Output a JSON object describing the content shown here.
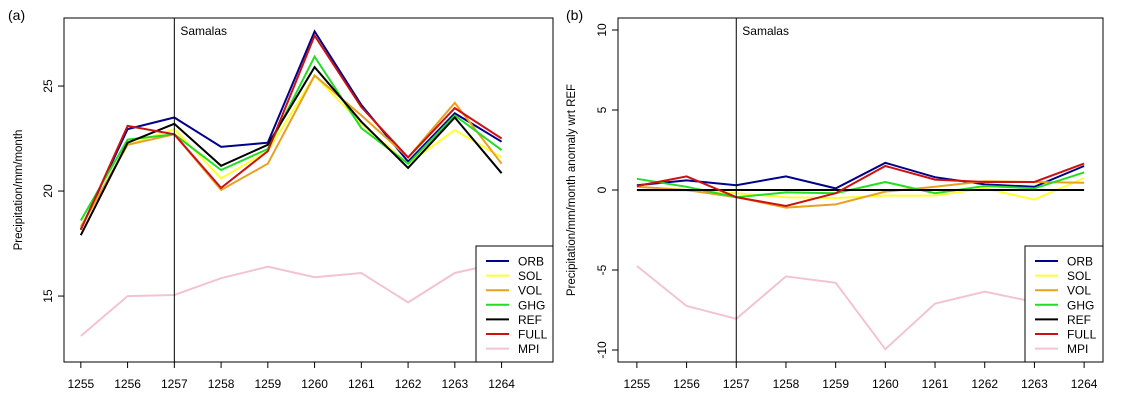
{
  "chart_data": [
    {
      "type": "line",
      "panel_label": "(a)",
      "title": "",
      "xlabel": "",
      "ylabel": "Precipitation/mm/month",
      "x": [
        1255,
        1256,
        1257,
        1258,
        1259,
        1260,
        1261,
        1262,
        1263,
        1264
      ],
      "xticks": [
        "1255",
        "1256",
        "1257",
        "1258",
        "1259",
        "1260",
        "1261",
        "1262",
        "1263",
        "1264"
      ],
      "yticks": [
        15,
        20,
        25
      ],
      "ylim": [
        11.86,
        28.24
      ],
      "xlim": [
        1254.64,
        1265.1
      ],
      "grid": false,
      "annotation": {
        "text": "Samalas",
        "x": 1257
      },
      "legend_position": "bottom-right",
      "series": [
        {
          "name": "ORB",
          "color": "#00008B",
          "values": [
            18.2,
            22.95,
            23.5,
            22.1,
            22.3,
            27.6,
            24.1,
            21.4,
            23.7,
            22.35
          ]
        },
        {
          "name": "SOL",
          "color": "#FFFF33",
          "values": [
            18.25,
            22.2,
            22.95,
            20.6,
            21.9,
            25.5,
            23.2,
            21.3,
            22.9,
            21.6
          ]
        },
        {
          "name": "VOL",
          "color": "#E8A020",
          "values": [
            18.3,
            22.2,
            22.7,
            20.05,
            21.3,
            25.5,
            23.6,
            21.6,
            24.2,
            21.3
          ]
        },
        {
          "name": "GHG",
          "color": "#22DD22",
          "values": [
            18.6,
            22.45,
            22.7,
            21.0,
            22.0,
            26.4,
            23.0,
            21.3,
            23.6,
            21.95
          ]
        },
        {
          "name": "REF",
          "color": "#000000",
          "values": [
            17.9,
            22.3,
            23.2,
            21.2,
            22.2,
            25.9,
            23.3,
            21.1,
            23.5,
            20.85
          ]
        },
        {
          "name": "FULL",
          "color": "#CC1111",
          "values": [
            18.15,
            23.1,
            22.7,
            20.15,
            21.9,
            27.4,
            24.0,
            21.6,
            23.95,
            22.5
          ]
        },
        {
          "name": "MPI",
          "color": "#F2C4CF",
          "values": [
            13.1,
            15.0,
            15.05,
            15.85,
            16.4,
            15.9,
            16.1,
            14.7,
            16.1,
            16.6
          ]
        }
      ]
    },
    {
      "type": "line",
      "panel_label": "(b)",
      "title": "",
      "xlabel": "",
      "ylabel": "Precipitation/mm/month anomaly wrt REF",
      "x": [
        1255,
        1256,
        1257,
        1258,
        1259,
        1260,
        1261,
        1262,
        1263,
        1264
      ],
      "xticks": [
        "1255",
        "1256",
        "1257",
        "1258",
        "1259",
        "1260",
        "1261",
        "1262",
        "1263",
        "1264"
      ],
      "yticks": [
        -10,
        -5,
        0,
        5,
        10
      ],
      "ylim": [
        -10.75,
        10.75
      ],
      "xlim": [
        1254.62,
        1264.38
      ],
      "grid": false,
      "annotation": {
        "text": "Samalas",
        "x": 1257
      },
      "legend_position": "bottom-right",
      "series": [
        {
          "name": "ORB",
          "color": "#00008B",
          "values": [
            0.3,
            0.6,
            0.3,
            0.85,
            0.1,
            1.7,
            0.8,
            0.35,
            0.2,
            1.5
          ]
        },
        {
          "name": "SOL",
          "color": "#FFFF33",
          "values": [
            -0.05,
            -0.05,
            -0.2,
            -0.45,
            -0.5,
            -0.35,
            -0.35,
            0.1,
            -0.6,
            0.75
          ]
        },
        {
          "name": "VOL",
          "color": "#E8A020",
          "values": [
            0.2,
            0.0,
            -0.45,
            -1.1,
            -0.9,
            -0.1,
            0.2,
            0.55,
            0.5,
            0.45
          ]
        },
        {
          "name": "GHG",
          "color": "#22DD22",
          "values": [
            0.7,
            0.2,
            -0.45,
            -0.15,
            -0.2,
            0.5,
            -0.2,
            0.25,
            0.1,
            1.1
          ]
        },
        {
          "name": "REF",
          "color": "#000000",
          "values": [
            0,
            0,
            0,
            0,
            0,
            0,
            0,
            0,
            0,
            0
          ]
        },
        {
          "name": "FULL",
          "color": "#CC1111",
          "values": [
            0.25,
            0.85,
            -0.45,
            -1.0,
            -0.2,
            1.5,
            0.65,
            0.5,
            0.5,
            1.65
          ]
        },
        {
          "name": "MPI",
          "color": "#F2C4CF",
          "values": [
            -4.75,
            -7.25,
            -8.05,
            -5.4,
            -5.8,
            -9.95,
            -7.1,
            -6.35,
            -7.0,
            -6.6
          ]
        }
      ]
    }
  ]
}
